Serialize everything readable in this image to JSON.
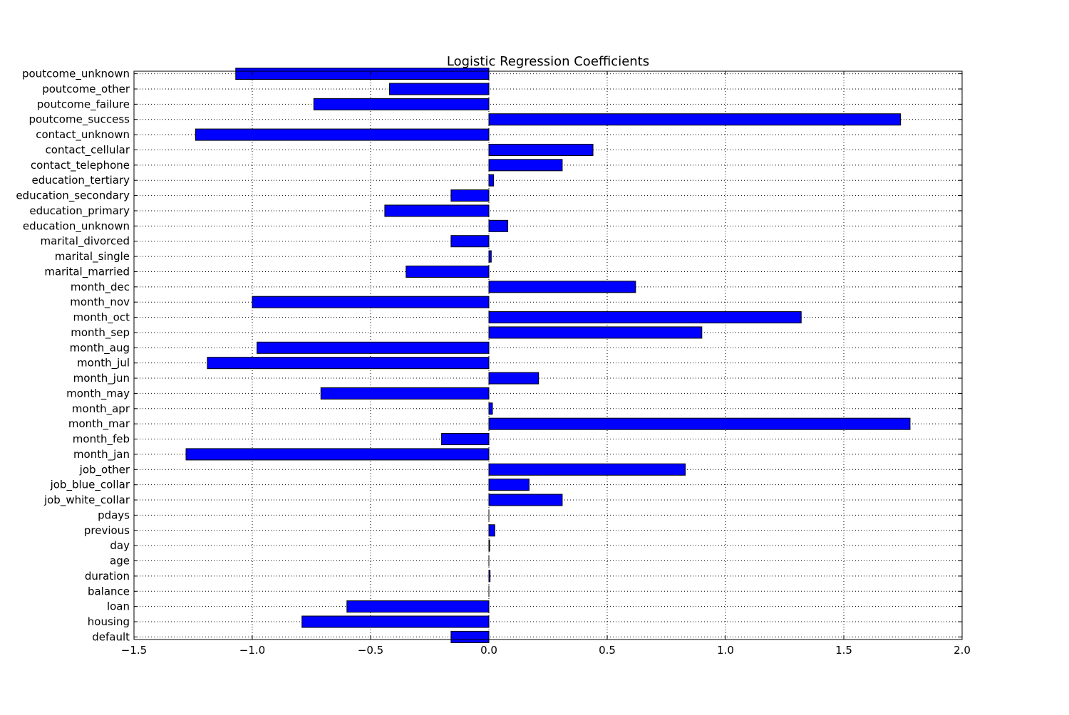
{
  "chart_data": {
    "type": "bar",
    "orientation": "horizontal",
    "title": "Logistic Regression Coefficients",
    "xlabel": "",
    "ylabel": "",
    "xlim": [
      -1.5,
      2.0
    ],
    "x_ticks": [
      -1.5,
      -1.0,
      -0.5,
      0.0,
      0.5,
      1.0,
      1.5,
      2.0
    ],
    "x_tick_labels": [
      "−1.5",
      "−1.0",
      "−0.5",
      "0.0",
      "0.5",
      "1.0",
      "1.5",
      "2.0"
    ],
    "grid": true,
    "bar_color": "#0000ff",
    "categories": [
      "default",
      "housing",
      "loan",
      "balance",
      "duration",
      "age",
      "day",
      "previous",
      "pdays",
      "job_white_collar",
      "job_blue_collar",
      "job_other",
      "month_jan",
      "month_feb",
      "month_mar",
      "month_apr",
      "month_may",
      "month_jun",
      "month_jul",
      "month_aug",
      "month_sep",
      "month_oct",
      "month_nov",
      "month_dec",
      "marital_married",
      "marital_single",
      "marital_divorced",
      "education_unknown",
      "education_primary",
      "education_secondary",
      "education_tertiary",
      "contact_telephone",
      "contact_cellular",
      "contact_unknown",
      "poutcome_success",
      "poutcome_failure",
      "poutcome_other",
      "poutcome_unknown"
    ],
    "values": [
      -0.16,
      -0.79,
      -0.6,
      0.0,
      0.005,
      0.0,
      0.003,
      0.025,
      0.0,
      0.31,
      0.17,
      0.83,
      -1.28,
      -0.2,
      1.78,
      0.015,
      -0.71,
      0.21,
      -1.19,
      -0.98,
      0.9,
      1.32,
      -1.0,
      0.62,
      -0.35,
      0.01,
      -0.16,
      0.08,
      -0.44,
      -0.16,
      0.02,
      0.31,
      0.44,
      -1.24,
      1.74,
      -0.74,
      -0.42,
      -1.07
    ]
  }
}
